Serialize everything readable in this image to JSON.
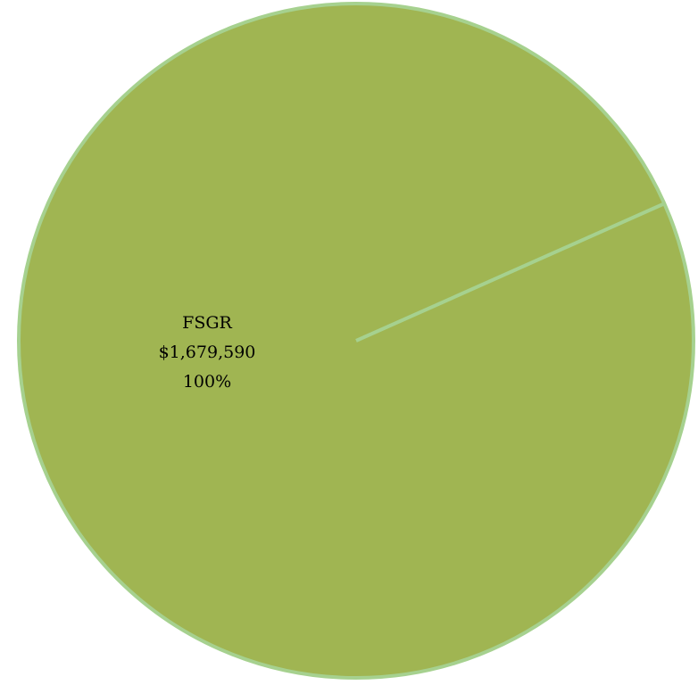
{
  "chart_data": {
    "type": "pie",
    "title": "",
    "slices": [
      {
        "label": "FSGR",
        "value": 1679590,
        "value_label": "$1,679,590",
        "percent": 100,
        "percent_label": "100%",
        "color": "#a0b552"
      }
    ],
    "start_angle_deg": -24,
    "border_color": "#a6d18f",
    "legend": "none"
  }
}
